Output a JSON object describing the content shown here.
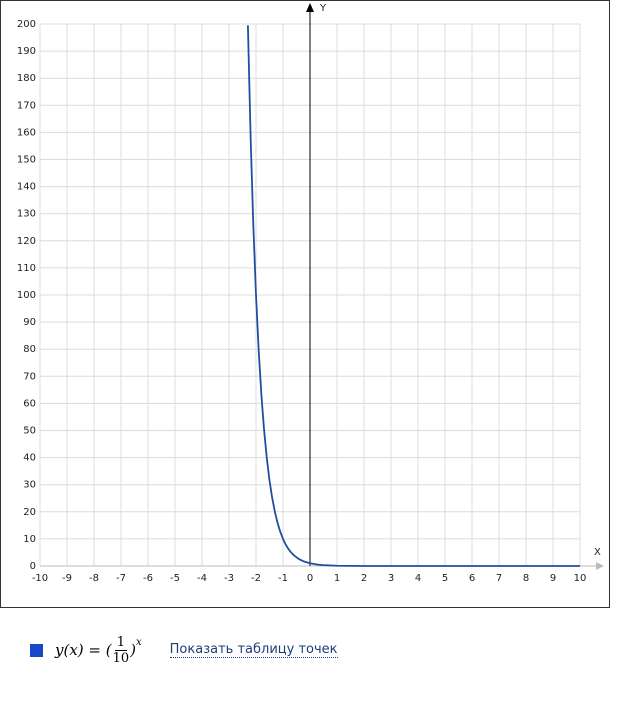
{
  "chart_data": {
    "type": "line",
    "x_label": "X",
    "y_label": "Y",
    "xlim": [
      -10,
      10
    ],
    "ylim": [
      0,
      200
    ],
    "xticks": [
      -10,
      -9,
      -8,
      -7,
      -6,
      -5,
      -4,
      -3,
      -2,
      -1,
      0,
      1,
      2,
      3,
      4,
      5,
      6,
      7,
      8,
      9,
      10
    ],
    "yticks": [
      0,
      10,
      20,
      30,
      40,
      50,
      60,
      70,
      80,
      90,
      100,
      110,
      120,
      130,
      140,
      150,
      160,
      170,
      180,
      190,
      200
    ],
    "grid": true,
    "series": [
      {
        "color": "#1f4ea0",
        "x": [
          -2.3,
          -2.2,
          -2.1,
          -2,
          -1.9,
          -1.8,
          -1.7,
          -1.6,
          -1.5,
          -1.4,
          -1.3,
          -1.2,
          -1.1,
          -1,
          -0.9,
          -0.8,
          -0.7,
          -0.6,
          -0.5,
          -0.4,
          -0.3,
          -0.2,
          -0.1,
          0,
          0.25,
          0.5,
          1,
          2,
          3,
          5,
          10
        ],
        "values": [
          199.5,
          158.5,
          125.9,
          100,
          79.4,
          63.1,
          50.1,
          39.8,
          31.6,
          25.1,
          20,
          15.8,
          12.6,
          10,
          7.9,
          6.3,
          5,
          4,
          3.2,
          2.5,
          2,
          1.6,
          1.3,
          1,
          0.56,
          0.32,
          0.1,
          0.01,
          0.001,
          0,
          0
        ]
      }
    ],
    "legend": {
      "color": "#1a47c8",
      "lhs": "y(x) = (",
      "numerator": "1",
      "denominator": "10",
      "rhs": ")",
      "exponent": "x",
      "link": "Показать таблицу точек"
    }
  }
}
